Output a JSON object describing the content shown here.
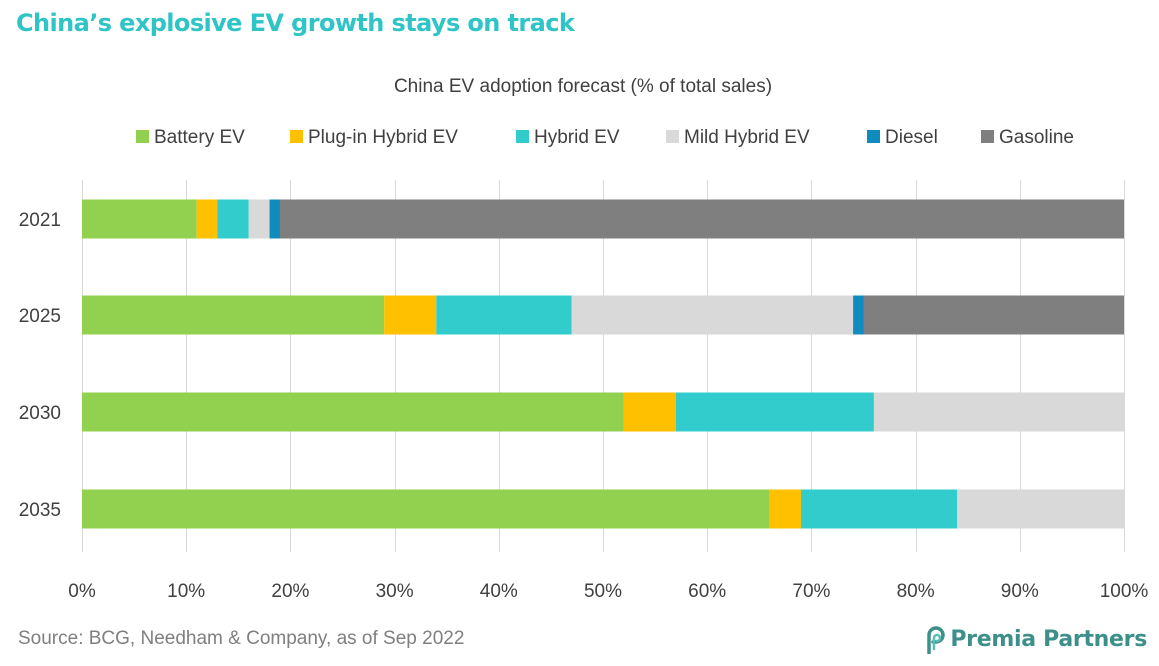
{
  "headline": "China’s explosive EV growth stays on track",
  "source": "Source: BCG, Needham & Company, as of Sep 2022",
  "brand": {
    "name": "Premia Partners",
    "icon": "premia-logo-icon"
  },
  "colors": {
    "Battery EV": "#92d050",
    "Plug-in Hybrid EV": "#ffc000",
    "Hybrid EV": "#33cccc",
    "Mild Hybrid EV": "#d9d9d9",
    "Diesel": "#0f8bbd",
    "Gasoline": "#7f7f7f",
    "headline": "#2fc4c6",
    "brand": "#3d8f8a"
  },
  "chart_data": {
    "type": "bar",
    "orientation": "horizontal",
    "stacked": true,
    "title": "China EV adoption forecast (% of total sales)",
    "categories": [
      "2021",
      "2025",
      "2030",
      "2035"
    ],
    "series": [
      {
        "name": "Battery EV",
        "values": [
          11,
          29,
          52,
          66
        ]
      },
      {
        "name": "Plug-in Hybrid EV",
        "values": [
          2,
          5,
          5,
          3
        ]
      },
      {
        "name": "Hybrid EV",
        "values": [
          3,
          13,
          19,
          15
        ]
      },
      {
        "name": "Mild Hybrid EV",
        "values": [
          2,
          27,
          24,
          16
        ]
      },
      {
        "name": "Diesel",
        "values": [
          1,
          1,
          0,
          0
        ]
      },
      {
        "name": "Gasoline",
        "values": [
          81,
          25,
          0,
          0
        ]
      }
    ],
    "xlim": [
      0,
      100
    ],
    "xticks": [
      "0%",
      "10%",
      "20%",
      "30%",
      "40%",
      "50%",
      "60%",
      "70%",
      "80%",
      "90%",
      "100%"
    ],
    "xlabel": "",
    "ylabel": "",
    "grid": true,
    "legend": "top"
  }
}
